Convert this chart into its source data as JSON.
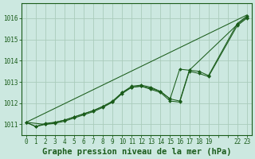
{
  "bg_color": "#cce8e0",
  "grid_color": "#aaccbb",
  "line_color": "#1a5c1a",
  "marker_color": "#1a5c1a",
  "title": "Graphe pression niveau de la mer (hPa)",
  "ylabel_ticks": [
    1011,
    1012,
    1013,
    1014,
    1015,
    1016
  ],
  "xtick_labels": [
    "0",
    "1",
    "2",
    "3",
    "4",
    "5",
    "6",
    "7",
    "8",
    "9",
    "10",
    "11",
    "12",
    "13",
    "14",
    "15",
    "16",
    "17",
    "18",
    "19",
    "22",
    "23"
  ],
  "xlim": [
    -0.5,
    23.5
  ],
  "ylim": [
    1010.5,
    1016.7
  ],
  "trend_x": [
    0,
    23
  ],
  "trend_y": [
    1011.1,
    1016.15
  ],
  "series1_x": [
    0,
    1,
    2,
    3,
    4,
    5,
    6,
    7,
    8,
    9,
    10,
    11,
    12,
    13,
    14,
    15,
    16,
    17,
    18,
    19,
    22,
    23
  ],
  "series1_y": [
    1011.1,
    1010.9,
    1011.0,
    1011.1,
    1011.2,
    1011.35,
    1011.5,
    1011.65,
    1011.85,
    1012.1,
    1012.5,
    1012.8,
    1012.85,
    1012.75,
    1012.55,
    1012.2,
    1012.1,
    1013.55,
    1013.5,
    1013.3,
    1015.75,
    1016.1
  ],
  "series2_x": [
    0,
    1,
    2,
    3,
    4,
    5,
    6,
    7,
    8,
    9,
    10,
    11,
    12,
    13,
    14,
    15,
    16,
    17,
    22,
    23
  ],
  "series2_y": [
    1011.1,
    1010.9,
    1011.05,
    1011.1,
    1011.2,
    1011.35,
    1011.5,
    1011.65,
    1011.85,
    1012.05,
    1012.45,
    1012.75,
    1012.8,
    1012.7,
    1012.55,
    1012.2,
    1013.6,
    1013.55,
    1015.7,
    1016.05
  ],
  "series3_x": [
    0,
    2,
    3,
    4,
    5,
    6,
    7,
    8,
    9,
    10,
    11,
    12,
    13,
    14,
    15,
    16,
    17,
    18,
    19,
    22,
    23
  ],
  "series3_y": [
    1011.1,
    1011.0,
    1011.05,
    1011.15,
    1011.3,
    1011.45,
    1011.6,
    1011.8,
    1012.05,
    1012.5,
    1012.75,
    1012.8,
    1012.65,
    1012.5,
    1012.1,
    1012.05,
    1013.5,
    1013.4,
    1013.25,
    1015.65,
    1016.0
  ],
  "title_fontsize": 7.5,
  "tick_fontsize": 5.5
}
